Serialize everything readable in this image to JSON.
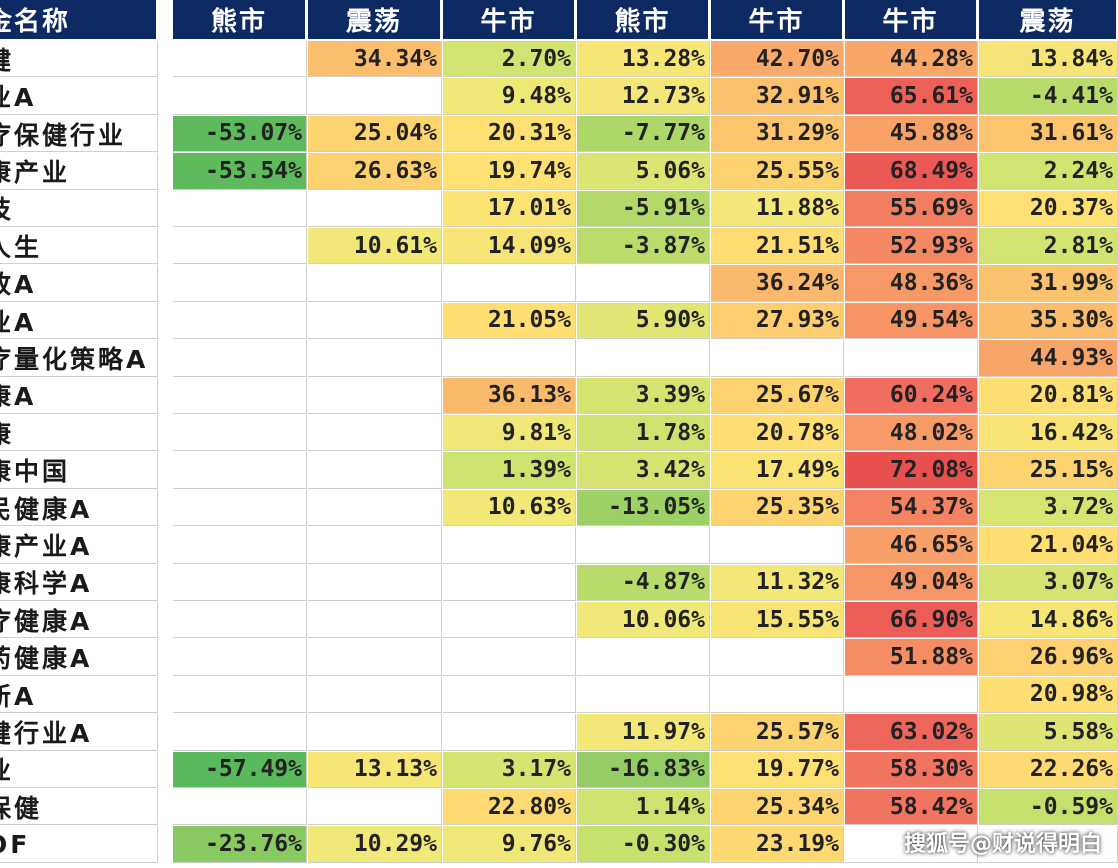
{
  "header": {
    "name": "金名称",
    "cols": [
      "熊市",
      "震荡",
      "牛市",
      "熊市",
      "牛市",
      "牛市",
      "震荡"
    ]
  },
  "rows": [
    {
      "name": "健",
      "values": [
        "",
        "34.34%",
        "2.70%",
        "13.28%",
        "42.70%",
        "44.28%",
        "13.84%"
      ]
    },
    {
      "name": "业A",
      "values": [
        "",
        "",
        "9.48%",
        "12.73%",
        "32.91%",
        "65.61%",
        "-4.41%"
      ]
    },
    {
      "name": "疗保健行业",
      "values": [
        "-53.07%",
        "25.04%",
        "20.31%",
        "-7.77%",
        "31.29%",
        "45.88%",
        "31.61%"
      ]
    },
    {
      "name": "康产业",
      "values": [
        "-53.54%",
        "26.63%",
        "19.74%",
        "5.06%",
        "25.55%",
        "68.49%",
        "2.24%"
      ]
    },
    {
      "name": "技",
      "values": [
        "",
        "",
        "17.01%",
        "-5.91%",
        "11.88%",
        "55.69%",
        "20.37%"
      ]
    },
    {
      "name": "人生",
      "values": [
        "",
        "10.61%",
        "14.09%",
        "-3.87%",
        "21.51%",
        "52.93%",
        "2.81%"
      ]
    },
    {
      "name": "改A",
      "values": [
        "",
        "",
        "",
        "",
        "36.24%",
        "48.36%",
        "31.99%"
      ]
    },
    {
      "name": "业A",
      "values": [
        "",
        "",
        "21.05%",
        "5.90%",
        "27.93%",
        "49.54%",
        "35.30%"
      ]
    },
    {
      "name": "疗量化策略A",
      "values": [
        "",
        "",
        "",
        "",
        "",
        "",
        "44.93%"
      ]
    },
    {
      "name": "康A",
      "values": [
        "",
        "",
        "36.13%",
        "3.39%",
        "25.67%",
        "60.24%",
        "20.81%"
      ]
    },
    {
      "name": "康",
      "values": [
        "",
        "",
        "9.81%",
        "1.78%",
        "20.78%",
        "48.02%",
        "16.42%"
      ]
    },
    {
      "name": "康中国",
      "values": [
        "",
        "",
        "1.39%",
        "3.42%",
        "17.49%",
        "72.08%",
        "25.15%"
      ]
    },
    {
      "name": "民健康A",
      "values": [
        "",
        "",
        "10.63%",
        "-13.05%",
        "25.35%",
        "54.37%",
        "3.72%"
      ]
    },
    {
      "name": "康产业A",
      "values": [
        "",
        "",
        "",
        "",
        "",
        "46.65%",
        "21.04%"
      ]
    },
    {
      "name": "康科学A",
      "values": [
        "",
        "",
        "",
        "-4.87%",
        "11.32%",
        "49.04%",
        "3.07%"
      ]
    },
    {
      "name": "疗健康A",
      "values": [
        "",
        "",
        "",
        "10.06%",
        "15.55%",
        "66.90%",
        "14.86%"
      ]
    },
    {
      "name": "药健康A",
      "values": [
        "",
        "",
        "",
        "",
        "",
        "51.88%",
        "26.96%"
      ]
    },
    {
      "name": "新A",
      "values": [
        "",
        "",
        "",
        "",
        "",
        "",
        "20.98%"
      ]
    },
    {
      "name": "健行业A",
      "values": [
        "",
        "",
        "",
        "11.97%",
        "25.57%",
        "63.02%",
        "5.58%"
      ]
    },
    {
      "name": "业",
      "values": [
        "-57.49%",
        "13.13%",
        "3.17%",
        "-16.83%",
        "19.77%",
        "58.30%",
        "22.26%"
      ]
    },
    {
      "name": "保健",
      "values": [
        "",
        "",
        "22.80%",
        "1.14%",
        "25.34%",
        "58.42%",
        "-0.59%"
      ]
    },
    {
      "name": "OF",
      "values": [
        "-23.76%",
        "10.29%",
        "9.76%",
        "-0.30%",
        "23.19%",
        "",
        ""
      ]
    }
  ],
  "watermark": "搜狐号@财说得明白"
}
